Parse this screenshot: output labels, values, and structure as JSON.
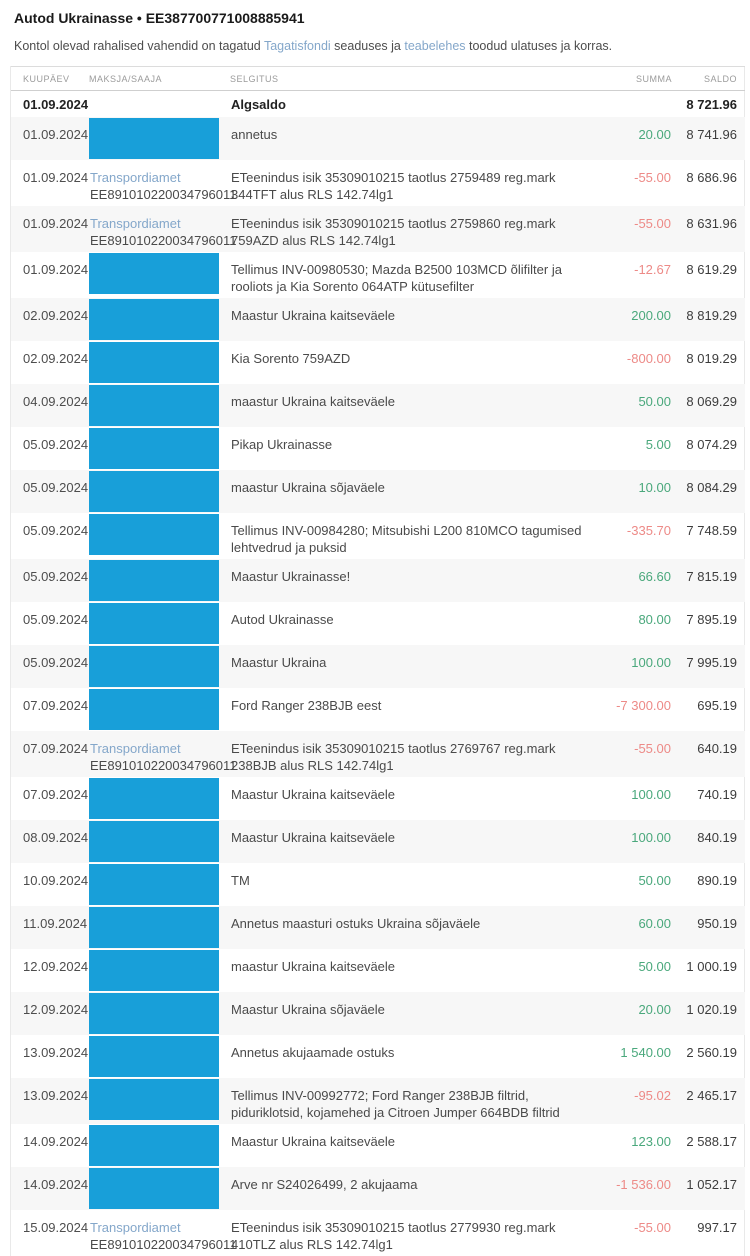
{
  "colors": {
    "redaction_blue": "#189fd9",
    "link_blue": "#84a7ca",
    "credit_green": "#4aa87c",
    "debit_red": "#ed8a87"
  },
  "header": {
    "title": "Autod Ukrainasse • EE387700771008885941",
    "subtitle_parts": [
      {
        "type": "text",
        "text": "Kontol olevad rahalised vahendid on tagatud "
      },
      {
        "type": "link",
        "text": "Tagatisfondi"
      },
      {
        "type": "text",
        "text": " seaduses ja "
      },
      {
        "type": "link",
        "text": "teabelehes"
      },
      {
        "type": "text",
        "text": " toodud ulatuses ja korras."
      }
    ]
  },
  "table": {
    "columns": {
      "date": "Kuupäev",
      "payer": "Maksja/saaja",
      "description": "Selgitus",
      "amount": "Summa",
      "balance": "Saldo"
    },
    "rows": [
      {
        "date": "01.09.2024",
        "opening": true,
        "description": "Algsaldo",
        "amount": "",
        "amount_type": "",
        "balance": "8 721.96"
      },
      {
        "date": "01.09.2024",
        "redacted": true,
        "description": "annetus",
        "amount": "20.00",
        "amount_type": "credit",
        "balance": "8 741.96"
      },
      {
        "date": "01.09.2024",
        "payer_name": "Transpordiamet",
        "payer_account": "EE891010220034796011",
        "description": "ETeenindus isik 35309010215 taotlus 2759489 reg.mark 344TFT alus RLS 142.74lg1",
        "amount": "-55.00",
        "amount_type": "debit",
        "balance": "8 686.96"
      },
      {
        "date": "01.09.2024",
        "payer_name": "Transpordiamet",
        "payer_account": "EE891010220034796011",
        "description": "ETeenindus isik 35309010215 taotlus 2759860 reg.mark 759AZD alus RLS 142.74lg1",
        "amount": "-55.00",
        "amount_type": "debit",
        "balance": "8 631.96"
      },
      {
        "date": "01.09.2024",
        "redacted": true,
        "description": "Tellimus INV-00980530; Mazda B2500 103MCD õlifilter ja rooliots ja Kia Sorento 064ATP kütusefilter",
        "amount": "-12.67",
        "amount_type": "debit",
        "balance": "8 619.29"
      },
      {
        "date": "02.09.2024",
        "redacted": true,
        "description": "Maastur Ukraina kaitseväele",
        "amount": "200.00",
        "amount_type": "credit",
        "balance": "8 819.29"
      },
      {
        "date": "02.09.2024",
        "redacted": true,
        "description": "Kia Sorento 759AZD",
        "amount": "-800.00",
        "amount_type": "debit",
        "balance": "8 019.29"
      },
      {
        "date": "04.09.2024",
        "redacted": true,
        "description": "maastur Ukraina kaitseväele",
        "amount": "50.00",
        "amount_type": "credit",
        "balance": "8 069.29"
      },
      {
        "date": "05.09.2024",
        "redacted": true,
        "description": "Pikap Ukrainasse",
        "amount": "5.00",
        "amount_type": "credit",
        "balance": "8 074.29"
      },
      {
        "date": "05.09.2024",
        "redacted": true,
        "description": "maastur Ukraina sõjaväele",
        "amount": "10.00",
        "amount_type": "credit",
        "balance": "8 084.29"
      },
      {
        "date": "05.09.2024",
        "redacted": true,
        "description": "Tellimus INV-00984280; Mitsubishi L200 810MCO tagumised lehtvedrud ja puksid",
        "amount": "-335.70",
        "amount_type": "debit",
        "balance": "7 748.59"
      },
      {
        "date": "05.09.2024",
        "redacted": true,
        "description": "Maastur Ukrainasse!",
        "amount": "66.60",
        "amount_type": "credit",
        "balance": "7 815.19"
      },
      {
        "date": "05.09.2024",
        "redacted": true,
        "description": "Autod Ukrainasse",
        "amount": "80.00",
        "amount_type": "credit",
        "balance": "7 895.19"
      },
      {
        "date": "05.09.2024",
        "redacted": true,
        "description": "Maastur Ukraina",
        "amount": "100.00",
        "amount_type": "credit",
        "balance": "7 995.19"
      },
      {
        "date": "07.09.2024",
        "redacted": true,
        "description": "Ford Ranger 238BJB eest",
        "amount": "-7 300.00",
        "amount_type": "debit",
        "balance": "695.19"
      },
      {
        "date": "07.09.2024",
        "payer_name": "Transpordiamet",
        "payer_account": "EE891010220034796011",
        "description": "ETeenindus isik 35309010215 taotlus 2769767 reg.mark 238BJB alus RLS 142.74lg1",
        "amount": "-55.00",
        "amount_type": "debit",
        "balance": "640.19"
      },
      {
        "date": "07.09.2024",
        "redacted": true,
        "description": "Maastur Ukraina kaitseväele",
        "amount": "100.00",
        "amount_type": "credit",
        "balance": "740.19"
      },
      {
        "date": "08.09.2024",
        "redacted": true,
        "description": "Maastur Ukraina kaitseväele",
        "amount": "100.00",
        "amount_type": "credit",
        "balance": "840.19"
      },
      {
        "date": "10.09.2024",
        "redacted": true,
        "description": "TM",
        "amount": "50.00",
        "amount_type": "credit",
        "balance": "890.19"
      },
      {
        "date": "11.09.2024",
        "redacted": true,
        "description": "Annetus maasturi ostuks Ukraina sõjaväele",
        "amount": "60.00",
        "amount_type": "credit",
        "balance": "950.19"
      },
      {
        "date": "12.09.2024",
        "redacted": true,
        "description": "maastur Ukraina kaitseväele",
        "amount": "50.00",
        "amount_type": "credit",
        "balance": "1 000.19"
      },
      {
        "date": "12.09.2024",
        "redacted": true,
        "description": "Maastur Ukraina sõjaväele",
        "amount": "20.00",
        "amount_type": "credit",
        "balance": "1 020.19"
      },
      {
        "date": "13.09.2024",
        "redacted": true,
        "description": "Annetus akujaamade ostuks",
        "amount": "1 540.00",
        "amount_type": "credit",
        "balance": "2 560.19"
      },
      {
        "date": "13.09.2024",
        "redacted": true,
        "description": "Tellimus INV-00992772; Ford Ranger 238BJB filtrid, piduriklotsid, kojamehed ja Citroen Jumper 664BDB filtrid",
        "amount": "-95.02",
        "amount_type": "debit",
        "balance": "2 465.17"
      },
      {
        "date": "14.09.2024",
        "redacted": true,
        "description": "Maastur Ukraina kaitseväele",
        "amount": "123.00",
        "amount_type": "credit",
        "balance": "2 588.17"
      },
      {
        "date": "14.09.2024",
        "redacted": true,
        "description": "Arve nr S24026499, 2 akujaama",
        "amount": "-1 536.00",
        "amount_type": "debit",
        "balance": "1 052.17"
      },
      {
        "date": "15.09.2024",
        "payer_name": "Transpordiamet",
        "payer_account": "EE891010220034796011",
        "description": "ETeenindus isik 35309010215 taotlus 2779930 reg.mark 410TLZ alus RLS 142.74lg1",
        "amount": "-55.00",
        "amount_type": "debit",
        "balance": "997.17"
      }
    ]
  }
}
